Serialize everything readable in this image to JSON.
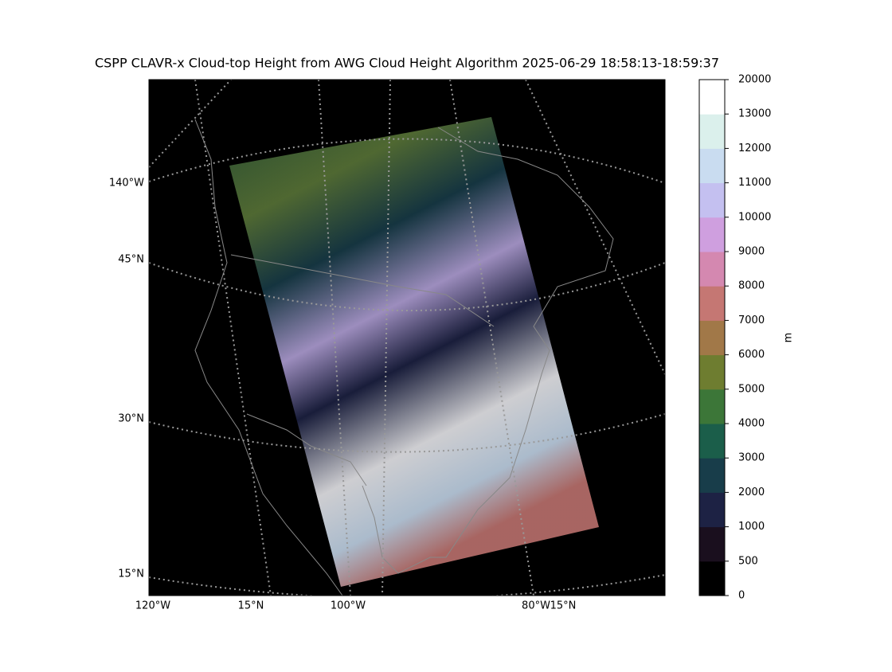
{
  "title": "CSPP CLAVR-x Cloud-top Height from AWG Cloud Height Algorithm 2025-06-29 18:58:13-18:59:37",
  "map": {
    "left_labels": [
      "140°W",
      "45°N",
      "30°N",
      "15°N"
    ],
    "bottom_labels": [
      "120°W",
      "15°N",
      "100°W",
      "80°W",
      "15°N"
    ]
  },
  "colorbar": {
    "label": "m",
    "ticks": [
      0,
      500,
      1000,
      2000,
      3000,
      4000,
      5000,
      6000,
      7000,
      8000,
      9000,
      10000,
      11000,
      12000,
      13000,
      20000
    ],
    "colors": [
      "#000000",
      "#1a0f1e",
      "#1d2244",
      "#183d4a",
      "#1b5e4a",
      "#3c7638",
      "#6e7d30",
      "#a17848",
      "#c57773",
      "#d488b0",
      "#cf9fdf",
      "#c4c0f0",
      "#c9dcf0",
      "#dbf0ec",
      "#ffffff"
    ]
  }
}
